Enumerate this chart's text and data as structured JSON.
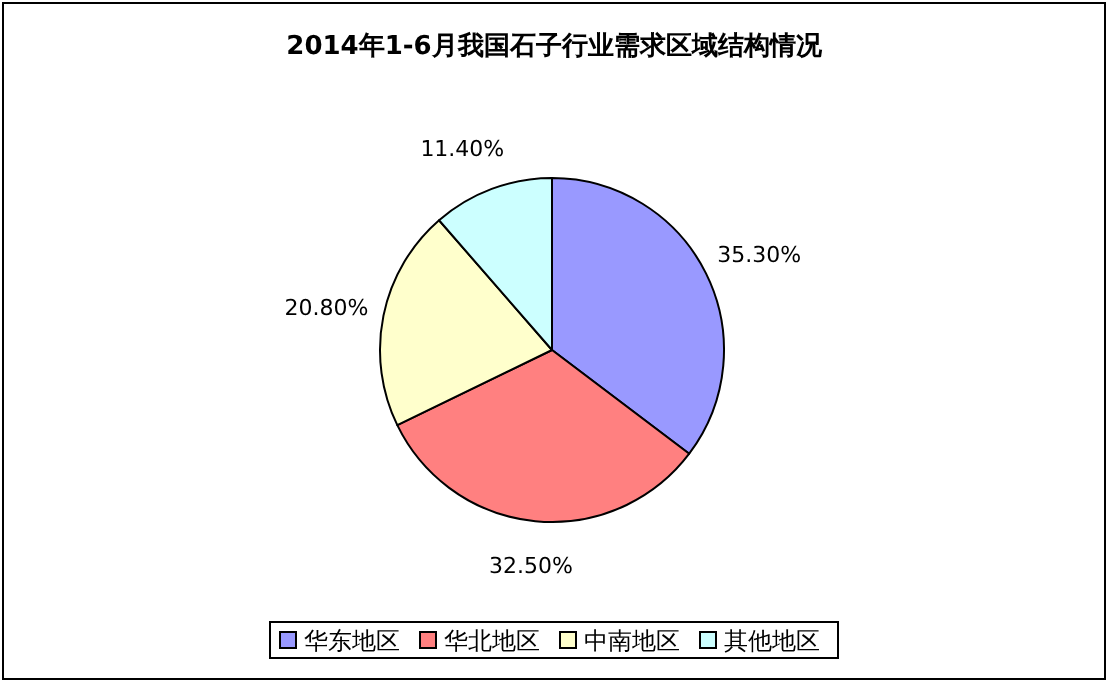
{
  "chart_data": {
    "type": "pie",
    "title": "2014年1-6月我国石子行业需求区域结构情况",
    "categories": [
      "华东地区",
      "华北地区",
      "中南地区",
      "其他地区"
    ],
    "values": [
      35.3,
      32.5,
      20.8,
      11.4
    ],
    "value_labels": [
      "35.30%",
      "32.50%",
      "20.80%",
      "11.40%"
    ],
    "colors": [
      "#9999ff",
      "#ff8080",
      "#ffffcc",
      "#ccffff"
    ],
    "legend": "bottom"
  }
}
